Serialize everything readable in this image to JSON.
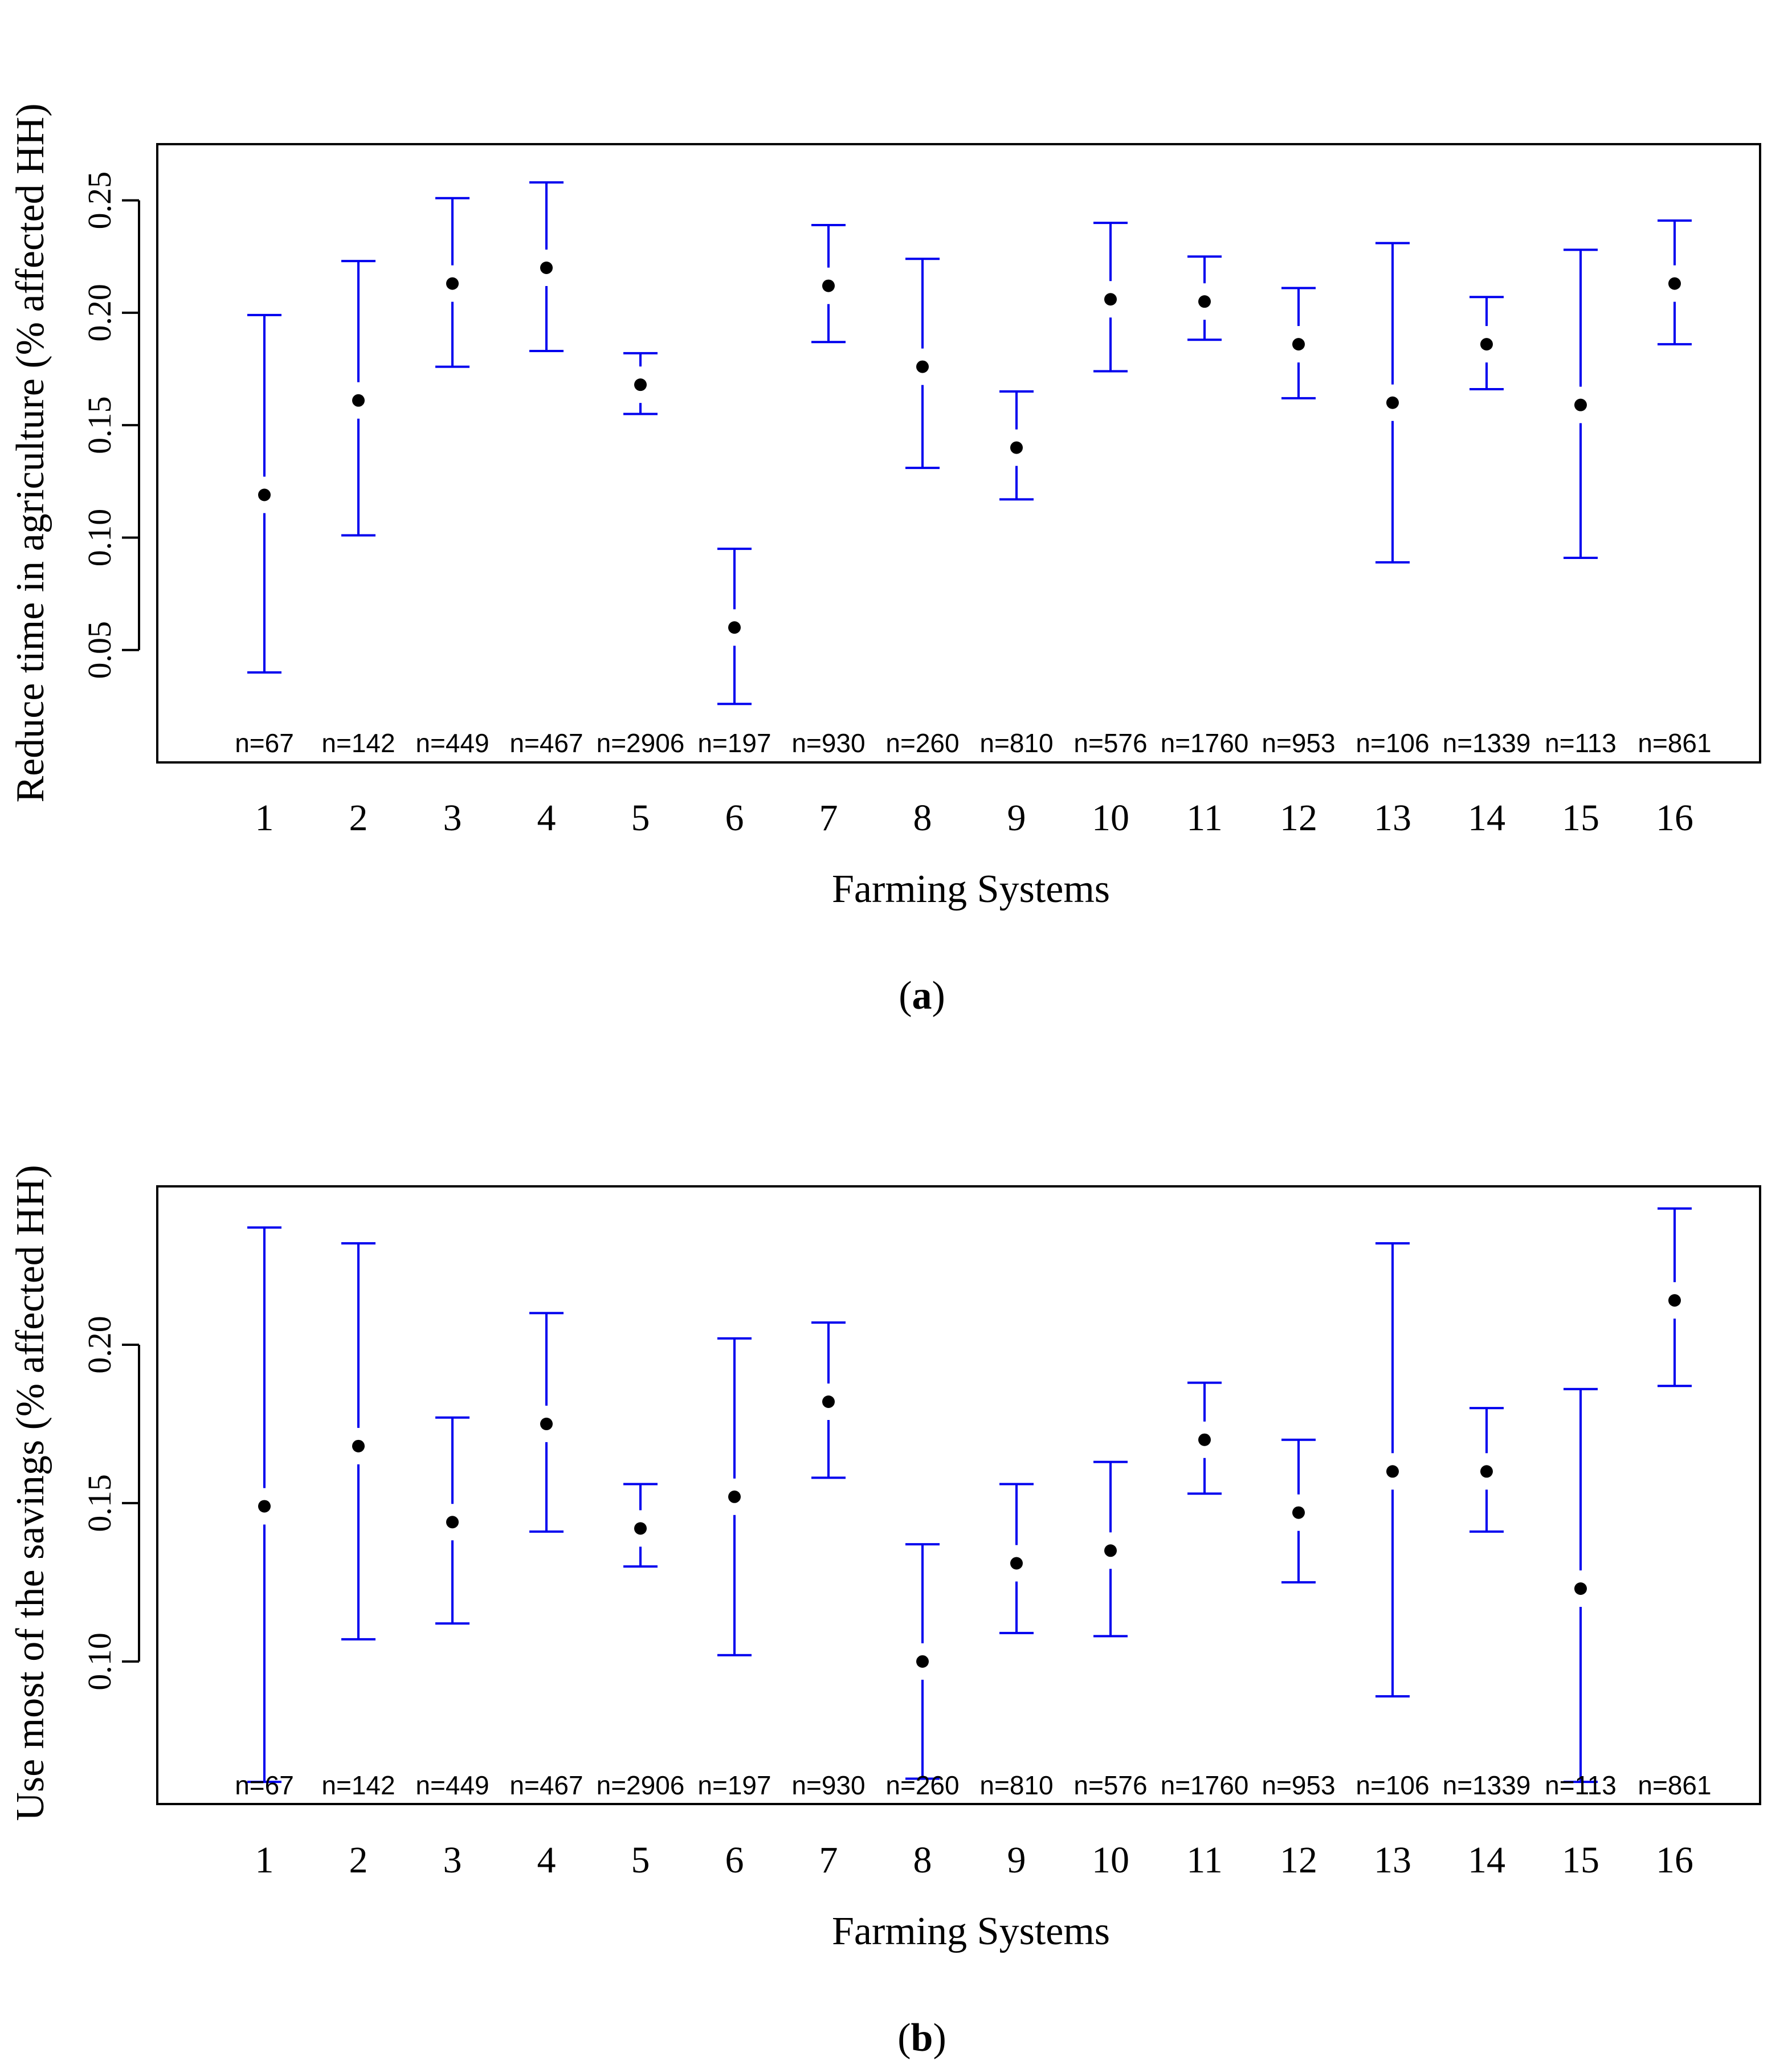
{
  "colors": {
    "errorbar": "#0000ee",
    "point": "#000000",
    "frame": "#000000",
    "background": "#ffffff"
  },
  "chart_data": [
    {
      "type": "errorbar",
      "panel_label": "a",
      "xlabel": "Farming Systems",
      "ylabel": "Reduce time in agriculture (% affected HH)",
      "ylim": [
        0.0,
        0.275
      ],
      "yticks": [
        0.05,
        0.1,
        0.15,
        0.2,
        0.25
      ],
      "ytick_labels": [
        "0.05",
        "0.10",
        "0.15",
        "0.20",
        "0.25"
      ],
      "categories": [
        "1",
        "2",
        "3",
        "4",
        "5",
        "6",
        "7",
        "8",
        "9",
        "10",
        "11",
        "12",
        "13",
        "14",
        "15",
        "16"
      ],
      "n_labels": [
        "n=67",
        "n=142",
        "n=449",
        "n=467",
        "n=2906",
        "n=197",
        "n=930",
        "n=260",
        "n=810",
        "n=576",
        "n=1760",
        "n=953",
        "n=106",
        "n=1339",
        "n=113",
        "n=861"
      ],
      "means": [
        0.119,
        0.161,
        0.213,
        0.22,
        0.168,
        0.06,
        0.212,
        0.176,
        0.14,
        0.206,
        0.205,
        0.186,
        0.16,
        0.186,
        0.159,
        0.213
      ],
      "lower": [
        0.04,
        0.101,
        0.176,
        0.183,
        0.155,
        0.026,
        0.187,
        0.131,
        0.117,
        0.174,
        0.188,
        0.162,
        0.089,
        0.166,
        0.091,
        0.186
      ],
      "upper": [
        0.199,
        0.223,
        0.251,
        0.258,
        0.182,
        0.095,
        0.239,
        0.224,
        0.165,
        0.24,
        0.225,
        0.211,
        0.231,
        0.207,
        0.228,
        0.241
      ]
    },
    {
      "type": "errorbar",
      "panel_label": "b",
      "xlabel": "Farming Systems",
      "ylabel": "Use most of the savings (% affected HH)",
      "ylim": [
        0.055,
        0.25
      ],
      "yticks": [
        0.1,
        0.15,
        0.2
      ],
      "ytick_labels": [
        "0.10",
        "0.15",
        "0.20"
      ],
      "categories": [
        "1",
        "2",
        "3",
        "4",
        "5",
        "6",
        "7",
        "8",
        "9",
        "10",
        "11",
        "12",
        "13",
        "14",
        "15",
        "16"
      ],
      "n_labels": [
        "n=67",
        "n=142",
        "n=449",
        "n=467",
        "n=2906",
        "n=197",
        "n=930",
        "n=260",
        "n=810",
        "n=576",
        "n=1760",
        "n=953",
        "n=106",
        "n=1339",
        "n=113",
        "n=861"
      ],
      "means": [
        0.149,
        0.168,
        0.144,
        0.175,
        0.142,
        0.152,
        0.182,
        0.1,
        0.131,
        0.135,
        0.17,
        0.147,
        0.16,
        0.16,
        0.123,
        0.214
      ],
      "lower": [
        0.062,
        0.107,
        0.112,
        0.141,
        0.13,
        0.102,
        0.158,
        0.063,
        0.109,
        0.108,
        0.153,
        0.125,
        0.089,
        0.141,
        0.062,
        0.187
      ],
      "upper": [
        0.237,
        0.232,
        0.177,
        0.21,
        0.156,
        0.202,
        0.207,
        0.137,
        0.156,
        0.163,
        0.188,
        0.17,
        0.232,
        0.18,
        0.186,
        0.243
      ]
    }
  ]
}
